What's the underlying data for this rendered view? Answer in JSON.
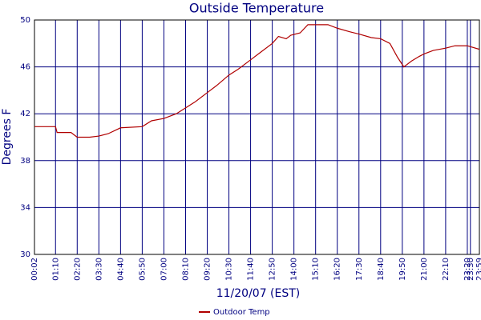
{
  "chart_data": {
    "type": "line",
    "title": "Outside Temperature",
    "x_label": "11/20/07 (EST)",
    "y_label": "Degrees F",
    "x": [
      "00:02",
      "01:10",
      "01:15",
      "02:00",
      "02:20",
      "03:00",
      "03:30",
      "04:00",
      "04:40",
      "05:50",
      "06:20",
      "07:00",
      "07:40",
      "08:10",
      "08:40",
      "09:20",
      "09:50",
      "10:30",
      "11:00",
      "11:40",
      "12:10",
      "12:50",
      "13:10",
      "13:35",
      "13:50",
      "14:20",
      "14:45",
      "15:10",
      "15:50",
      "16:20",
      "17:00",
      "17:30",
      "18:10",
      "18:40",
      "19:10",
      "19:35",
      "19:55",
      "20:20",
      "20:45",
      "21:00",
      "21:30",
      "22:10",
      "22:40",
      "23:20",
      "23:59"
    ],
    "series": [
      {
        "name": "Outdoor Temp",
        "color": "#b00000",
        "values": [
          40.9,
          40.9,
          40.4,
          40.4,
          40.0,
          40.0,
          40.1,
          40.3,
          40.8,
          40.9,
          41.4,
          41.6,
          42.0,
          42.5,
          43.0,
          43.8,
          44.4,
          45.3,
          45.8,
          46.6,
          47.2,
          48.0,
          48.6,
          48.4,
          48.7,
          48.9,
          49.6,
          49.6,
          49.6,
          49.3,
          49.0,
          48.8,
          48.5,
          48.4,
          48.0,
          46.8,
          46.0,
          46.5,
          46.9,
          47.1,
          47.4,
          47.6,
          47.8,
          47.8,
          47.5
        ]
      }
    ],
    "xlim": [
      "00:02",
      "23:59"
    ],
    "xticks": [
      "00:02",
      "01:10",
      "02:20",
      "03:30",
      "04:40",
      "05:50",
      "07:00",
      "08:10",
      "09:20",
      "10:30",
      "11:40",
      "12:50",
      "14:00",
      "15:10",
      "16:20",
      "17:30",
      "18:40",
      "19:50",
      "21:00",
      "22:10",
      "23:20",
      "23:30",
      "23:59"
    ],
    "ylim": [
      30,
      50
    ],
    "yticks": [
      30,
      34,
      38,
      42,
      46,
      50
    ],
    "grid": true,
    "legend": "bottom"
  }
}
